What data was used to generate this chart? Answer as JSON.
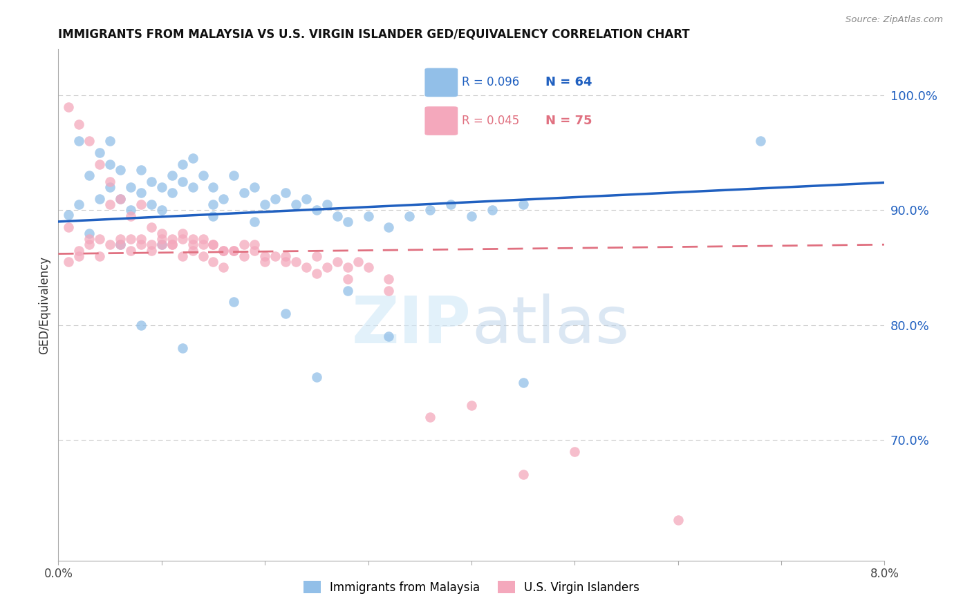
{
  "title": "IMMIGRANTS FROM MALAYSIA VS U.S. VIRGIN ISLANDER GED/EQUIVALENCY CORRELATION CHART",
  "source": "Source: ZipAtlas.com",
  "ylabel": "GED/Equivalency",
  "ytick_labels": [
    "100.0%",
    "90.0%",
    "80.0%",
    "70.0%"
  ],
  "ytick_values": [
    1.0,
    0.9,
    0.8,
    0.7
  ],
  "xlim": [
    0.0,
    0.08
  ],
  "ylim": [
    0.595,
    1.04
  ],
  "blue_color": "#92bfe8",
  "pink_color": "#f4a8bc",
  "blue_line_color": "#2060c0",
  "pink_line_color": "#e07080",
  "watermark_color": "#d0e8f8",
  "blue_scatter_x": [
    0.001,
    0.002,
    0.002,
    0.003,
    0.004,
    0.004,
    0.005,
    0.005,
    0.005,
    0.006,
    0.006,
    0.007,
    0.007,
    0.008,
    0.008,
    0.009,
    0.009,
    0.01,
    0.01,
    0.011,
    0.011,
    0.012,
    0.012,
    0.013,
    0.013,
    0.014,
    0.015,
    0.015,
    0.016,
    0.017,
    0.018,
    0.019,
    0.02,
    0.021,
    0.022,
    0.023,
    0.024,
    0.025,
    0.026,
    0.027,
    0.028,
    0.03,
    0.032,
    0.034,
    0.036,
    0.038,
    0.04,
    0.042,
    0.045,
    0.003,
    0.006,
    0.008,
    0.01,
    0.012,
    0.015,
    0.017,
    0.019,
    0.022,
    0.025,
    0.028,
    0.032,
    0.045,
    0.068
  ],
  "blue_scatter_y": [
    0.896,
    0.96,
    0.905,
    0.93,
    0.91,
    0.95,
    0.94,
    0.92,
    0.96,
    0.91,
    0.935,
    0.9,
    0.92,
    0.915,
    0.935,
    0.905,
    0.925,
    0.9,
    0.92,
    0.915,
    0.93,
    0.925,
    0.94,
    0.92,
    0.945,
    0.93,
    0.905,
    0.92,
    0.91,
    0.93,
    0.915,
    0.92,
    0.905,
    0.91,
    0.915,
    0.905,
    0.91,
    0.9,
    0.905,
    0.895,
    0.89,
    0.895,
    0.885,
    0.895,
    0.9,
    0.905,
    0.895,
    0.9,
    0.905,
    0.88,
    0.87,
    0.8,
    0.87,
    0.78,
    0.895,
    0.82,
    0.89,
    0.81,
    0.755,
    0.83,
    0.79,
    0.75,
    0.96
  ],
  "pink_scatter_x": [
    0.001,
    0.001,
    0.002,
    0.002,
    0.003,
    0.003,
    0.004,
    0.004,
    0.005,
    0.005,
    0.006,
    0.006,
    0.007,
    0.007,
    0.008,
    0.008,
    0.009,
    0.009,
    0.01,
    0.01,
    0.011,
    0.011,
    0.012,
    0.012,
    0.013,
    0.013,
    0.014,
    0.014,
    0.015,
    0.015,
    0.016,
    0.016,
    0.017,
    0.018,
    0.019,
    0.02,
    0.021,
    0.022,
    0.023,
    0.024,
    0.025,
    0.026,
    0.027,
    0.028,
    0.029,
    0.03,
    0.032,
    0.001,
    0.002,
    0.003,
    0.004,
    0.005,
    0.006,
    0.007,
    0.008,
    0.009,
    0.01,
    0.011,
    0.012,
    0.013,
    0.014,
    0.015,
    0.016,
    0.017,
    0.018,
    0.019,
    0.02,
    0.022,
    0.025,
    0.028,
    0.032,
    0.036,
    0.04,
    0.045,
    0.05,
    0.06
  ],
  "pink_scatter_y": [
    0.99,
    0.885,
    0.975,
    0.86,
    0.96,
    0.87,
    0.94,
    0.875,
    0.925,
    0.905,
    0.91,
    0.875,
    0.895,
    0.875,
    0.905,
    0.87,
    0.885,
    0.87,
    0.88,
    0.875,
    0.875,
    0.87,
    0.88,
    0.86,
    0.875,
    0.87,
    0.875,
    0.86,
    0.87,
    0.855,
    0.865,
    0.85,
    0.865,
    0.86,
    0.865,
    0.855,
    0.86,
    0.855,
    0.855,
    0.85,
    0.86,
    0.85,
    0.855,
    0.85,
    0.855,
    0.85,
    0.84,
    0.855,
    0.865,
    0.875,
    0.86,
    0.87,
    0.87,
    0.865,
    0.875,
    0.865,
    0.87,
    0.87,
    0.875,
    0.865,
    0.87,
    0.87,
    0.865,
    0.865,
    0.87,
    0.87,
    0.86,
    0.86,
    0.845,
    0.84,
    0.83,
    0.72,
    0.73,
    0.67,
    0.69,
    0.63
  ]
}
